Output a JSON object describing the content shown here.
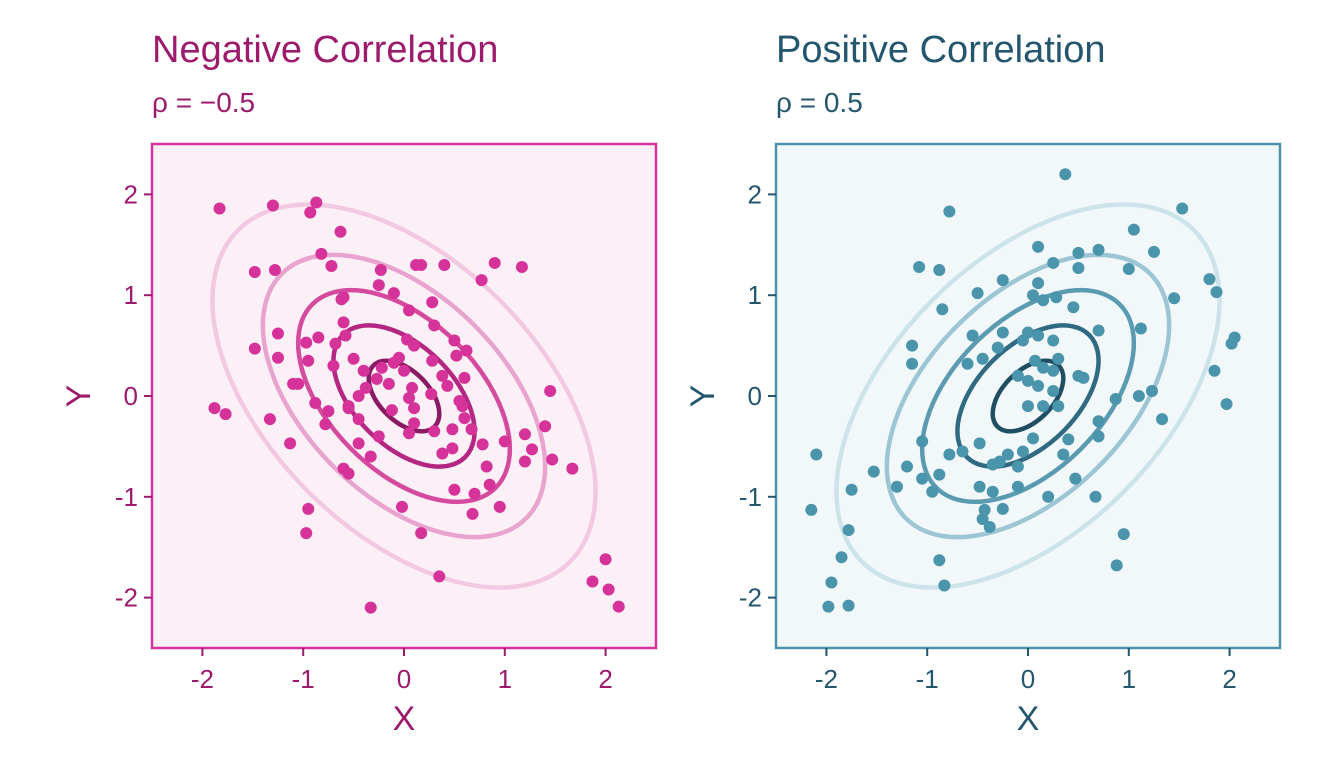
{
  "chart_data": [
    {
      "type": "scatter",
      "title": "Negative Correlation",
      "subtitle": "ρ = −0.5",
      "rho": -0.5,
      "xlabel": "X",
      "ylabel": "Y",
      "xlim": [
        -2.5,
        2.5
      ],
      "ylim": [
        -2.5,
        2.5
      ],
      "xticks": [
        -2,
        -1,
        0,
        1,
        2
      ],
      "yticks": [
        -2,
        -1,
        0,
        1,
        2
      ],
      "grid": false,
      "colors": {
        "main": "#9c1b6c",
        "point": "#d6339a",
        "panel_bg": "#fcf0f7",
        "border": "#d6339a",
        "contours": [
          "#8a1a63",
          "#b42682",
          "#d54a9f",
          "#e9a3cf",
          "#f3c9e2"
        ]
      },
      "contour_levels": [
        0.35,
        0.7,
        1.05,
        1.4,
        1.9
      ],
      "points": [
        [
          -1.83,
          1.86
        ],
        [
          -1.3,
          1.89
        ],
        [
          -0.93,
          1.82
        ],
        [
          -0.87,
          1.92
        ],
        [
          -0.63,
          1.63
        ],
        [
          -0.82,
          1.41
        ],
        [
          -0.72,
          1.29
        ],
        [
          -1.48,
          1.23
        ],
        [
          -1.28,
          1.25
        ],
        [
          -1.48,
          0.47
        ],
        [
          -1.25,
          0.62
        ],
        [
          -1.25,
          0.38
        ],
        [
          -1.1,
          0.12
        ],
        [
          -1.05,
          0.12
        ],
        [
          -0.88,
          -0.07
        ],
        [
          -0.97,
          0.53
        ],
        [
          -0.95,
          0.35
        ],
        [
          -1.88,
          -0.12
        ],
        [
          -1.77,
          -0.18
        ],
        [
          -1.33,
          -0.23
        ],
        [
          -1.13,
          -0.47
        ],
        [
          -0.95,
          -1.12
        ],
        [
          -0.97,
          -1.36
        ],
        [
          -0.62,
          0.96
        ],
        [
          -0.6,
          0.98
        ],
        [
          -0.6,
          0.73
        ],
        [
          -0.58,
          0.6
        ],
        [
          -0.85,
          0.58
        ],
        [
          -0.68,
          0.52
        ],
        [
          -0.7,
          0.3
        ],
        [
          -0.5,
          0.37
        ],
        [
          -0.4,
          0.25
        ],
        [
          -0.38,
          0.08
        ],
        [
          -0.45,
          0.0
        ],
        [
          -0.55,
          -0.1
        ],
        [
          -0.78,
          -0.28
        ],
        [
          -0.75,
          -0.15
        ],
        [
          -0.55,
          -0.12
        ],
        [
          -0.45,
          -0.23
        ],
        [
          -0.6,
          -0.72
        ],
        [
          -0.55,
          -0.77
        ],
        [
          -0.45,
          -0.47
        ],
        [
          -0.33,
          -0.6
        ],
        [
          -0.25,
          -0.4
        ],
        [
          -0.12,
          -0.14
        ],
        [
          -0.15,
          0.12
        ],
        [
          -0.27,
          0.17
        ],
        [
          -0.22,
          0.28
        ],
        [
          -0.1,
          0.33
        ],
        [
          -0.05,
          0.38
        ],
        [
          0.0,
          0.25
        ],
        [
          0.03,
          0.56
        ],
        [
          0.1,
          0.5
        ],
        [
          0.08,
          0.08
        ],
        [
          0.05,
          -0.02
        ],
        [
          0.1,
          -0.12
        ],
        [
          0.05,
          -0.37
        ],
        [
          0.1,
          -0.27
        ],
        [
          0.28,
          0.35
        ],
        [
          0.27,
          0.02
        ],
        [
          0.3,
          -0.35
        ],
        [
          0.38,
          -0.57
        ],
        [
          0.48,
          -0.52
        ],
        [
          0.48,
          -0.33
        ],
        [
          0.6,
          -0.22
        ],
        [
          0.55,
          -0.05
        ],
        [
          0.43,
          0.1
        ],
        [
          0.38,
          0.2
        ],
        [
          0.3,
          0.7
        ],
        [
          0.5,
          0.55
        ],
        [
          0.52,
          0.4
        ],
        [
          0.62,
          0.45
        ],
        [
          0.6,
          0.18
        ],
        [
          0.58,
          -0.1
        ],
        [
          0.67,
          -0.33
        ],
        [
          0.78,
          -0.48
        ],
        [
          0.82,
          -0.7
        ],
        [
          0.85,
          -0.88
        ],
        [
          0.7,
          -0.97
        ],
        [
          0.5,
          -0.93
        ],
        [
          0.68,
          -1.17
        ],
        [
          0.95,
          -1.1
        ],
        [
          0.77,
          1.15
        ],
        [
          0.9,
          1.32
        ],
        [
          1.17,
          1.28
        ],
        [
          0.12,
          1.3
        ],
        [
          0.17,
          1.3
        ],
        [
          0.4,
          1.3
        ],
        [
          0.28,
          0.93
        ],
        [
          -0.23,
          1.25
        ],
        [
          -0.25,
          1.1
        ],
        [
          -0.1,
          1.02
        ],
        [
          0.05,
          0.85
        ],
        [
          1.0,
          -0.45
        ],
        [
          1.2,
          -0.65
        ],
        [
          1.27,
          -0.53
        ],
        [
          1.4,
          -0.3
        ],
        [
          1.45,
          0.05
        ],
        [
          1.47,
          -0.63
        ],
        [
          1.67,
          -0.72
        ],
        [
          1.2,
          -0.38
        ],
        [
          -0.02,
          -1.1
        ],
        [
          0.17,
          -1.36
        ],
        [
          0.35,
          -1.79
        ],
        [
          -0.33,
          -2.1
        ],
        [
          1.87,
          -1.84
        ],
        [
          2.0,
          -1.62
        ],
        [
          2.03,
          -1.92
        ],
        [
          2.13,
          -2.09
        ]
      ]
    },
    {
      "type": "scatter",
      "title": "Positive Correlation",
      "subtitle": "ρ = 0.5",
      "rho": 0.5,
      "xlabel": "X",
      "ylabel": "Y",
      "xlim": [
        -2.5,
        2.5
      ],
      "ylim": [
        -2.5,
        2.5
      ],
      "xticks": [
        -2,
        -1,
        0,
        1,
        2
      ],
      "yticks": [
        -2,
        -1,
        0,
        1,
        2
      ],
      "grid": false,
      "colors": {
        "main": "#24566e",
        "point": "#4a95ab",
        "panel_bg": "#f2f8fa",
        "border": "#4a95ab",
        "contours": [
          "#1f4e63",
          "#2f6a82",
          "#5b9bb1",
          "#9cc6d4",
          "#cde3ea"
        ]
      },
      "contour_levels": [
        0.35,
        0.7,
        1.05,
        1.4,
        1.9
      ],
      "points": [
        [
          0.37,
          2.2
        ],
        [
          -0.78,
          1.83
        ],
        [
          1.53,
          1.86
        ],
        [
          1.05,
          1.65
        ],
        [
          0.1,
          1.48
        ],
        [
          0.25,
          1.32
        ],
        [
          0.5,
          1.42
        ],
        [
          0.7,
          1.45
        ],
        [
          1.25,
          1.43
        ],
        [
          1.0,
          1.26
        ],
        [
          0.5,
          1.27
        ],
        [
          -1.08,
          1.28
        ],
        [
          -0.88,
          1.25
        ],
        [
          -0.25,
          1.15
        ],
        [
          0.05,
          1.0
        ],
        [
          0.15,
          0.95
        ],
        [
          0.28,
          0.98
        ],
        [
          0.1,
          1.12
        ],
        [
          -0.5,
          1.02
        ],
        [
          -0.85,
          0.86
        ],
        [
          -1.15,
          0.5
        ],
        [
          -1.15,
          0.32
        ],
        [
          -0.6,
          0.32
        ],
        [
          -0.55,
          0.6
        ],
        [
          -0.45,
          0.37
        ],
        [
          -0.3,
          0.48
        ],
        [
          -0.25,
          0.63
        ],
        [
          0.0,
          0.63
        ],
        [
          -0.05,
          0.55
        ],
        [
          0.1,
          0.6
        ],
        [
          0.25,
          0.55
        ],
        [
          0.45,
          0.88
        ],
        [
          0.7,
          0.65
        ],
        [
          1.12,
          0.67
        ],
        [
          1.45,
          0.97
        ],
        [
          1.8,
          1.16
        ],
        [
          1.87,
          1.03
        ],
        [
          2.05,
          0.58
        ],
        [
          2.02,
          0.52
        ],
        [
          1.85,
          0.25
        ],
        [
          1.97,
          -0.08
        ],
        [
          1.1,
          0.0
        ],
        [
          1.23,
          0.05
        ],
        [
          1.33,
          -0.23
        ],
        [
          0.87,
          -0.03
        ],
        [
          0.7,
          -0.25
        ],
        [
          0.7,
          -0.4
        ],
        [
          0.5,
          0.2
        ],
        [
          0.55,
          0.18
        ],
        [
          0.3,
          0.37
        ],
        [
          0.25,
          0.25
        ],
        [
          0.15,
          0.28
        ],
        [
          0.25,
          0.05
        ],
        [
          0.1,
          0.1
        ],
        [
          0.07,
          0.35
        ],
        [
          0.0,
          0.15
        ],
        [
          -0.1,
          0.2
        ],
        [
          0.15,
          -0.1
        ],
        [
          0.3,
          -0.1
        ],
        [
          0.4,
          -0.43
        ],
        [
          0.35,
          -0.58
        ],
        [
          0.05,
          -0.42
        ],
        [
          0.0,
          -0.1
        ],
        [
          -0.05,
          -0.55
        ],
        [
          -0.2,
          -0.58
        ],
        [
          -0.28,
          -0.65
        ],
        [
          -0.35,
          -0.68
        ],
        [
          -0.48,
          -0.47
        ],
        [
          -0.65,
          -0.55
        ],
        [
          -0.78,
          -0.58
        ],
        [
          -1.05,
          -0.45
        ],
        [
          -1.2,
          -0.7
        ],
        [
          -1.05,
          -0.82
        ],
        [
          -0.95,
          -0.95
        ],
        [
          -0.88,
          -0.78
        ],
        [
          -1.3,
          -0.9
        ],
        [
          -1.53,
          -0.75
        ],
        [
          -1.75,
          -0.93
        ],
        [
          -2.1,
          -0.58
        ],
        [
          -2.15,
          -1.13
        ],
        [
          -1.78,
          -1.33
        ],
        [
          -1.85,
          -1.6
        ],
        [
          -1.95,
          -1.85
        ],
        [
          -1.98,
          -2.09
        ],
        [
          -1.78,
          -2.08
        ],
        [
          -0.88,
          -1.63
        ],
        [
          -0.83,
          -1.88
        ],
        [
          -0.43,
          -1.13
        ],
        [
          -0.45,
          -1.22
        ],
        [
          -0.25,
          -1.12
        ],
        [
          -0.38,
          -1.3
        ],
        [
          -0.48,
          -0.9
        ],
        [
          -0.1,
          -0.9
        ],
        [
          0.2,
          -1.0
        ],
        [
          0.47,
          -0.82
        ],
        [
          0.67,
          -1.0
        ],
        [
          0.95,
          -1.37
        ],
        [
          0.88,
          -1.68
        ],
        [
          -0.1,
          -0.7
        ],
        [
          -0.35,
          -0.95
        ]
      ]
    }
  ]
}
